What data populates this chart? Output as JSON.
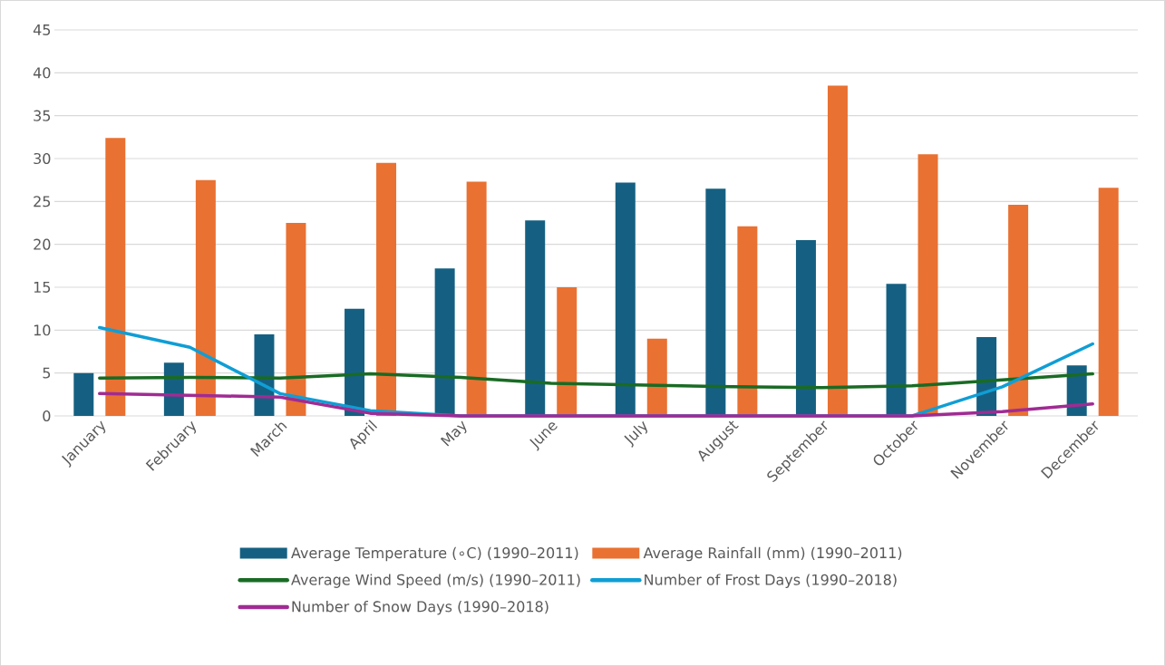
{
  "chart_data": {
    "type": "bar",
    "categories": [
      "January",
      "February",
      "March",
      "April",
      "May",
      "June",
      "July",
      "August",
      "September",
      "October",
      "November",
      "December"
    ],
    "series": [
      {
        "name": "Average Temperature (∘C) (1990–2011)",
        "color": "#156082",
        "values": [
          5.0,
          6.2,
          9.5,
          12.5,
          17.2,
          22.8,
          27.2,
          26.5,
          20.5,
          15.4,
          9.2,
          5.9
        ]
      },
      {
        "name": "Average Rainfall (mm) (1990–2011)",
        "color": "#e97132",
        "values": [
          32.4,
          27.5,
          22.5,
          29.5,
          27.3,
          15.0,
          9.0,
          22.1,
          38.5,
          30.5,
          24.6,
          26.6
        ]
      },
      {
        "name": "Average Wind Speed (m/s) (1990–2011)",
        "type": "line",
        "color": "#196b24",
        "values": [
          4.4,
          4.5,
          4.4,
          4.9,
          4.5,
          3.8,
          3.6,
          3.4,
          3.3,
          3.5,
          4.2,
          4.9
        ]
      },
      {
        "name": "Number of Frost Days (1990–2018)",
        "type": "line",
        "color": "#0f9ed5",
        "values": [
          10.3,
          8.0,
          2.6,
          0.6,
          0.0,
          0.0,
          0.0,
          0.0,
          0.0,
          0.0,
          3.4,
          8.4
        ]
      },
      {
        "name": "Number of Snow Days (1990–2018)",
        "type": "line",
        "color": "#a02b93",
        "values": [
          2.6,
          2.4,
          2.2,
          0.3,
          0.0,
          0.0,
          0.0,
          0.0,
          0.0,
          0.0,
          0.5,
          1.4
        ]
      }
    ],
    "ylim": [
      0,
      45
    ],
    "yticks": [
      0,
      5,
      10,
      15,
      20,
      25,
      30,
      35,
      40,
      45
    ],
    "grid": "y",
    "legend": "bottom",
    "marker": "none"
  }
}
